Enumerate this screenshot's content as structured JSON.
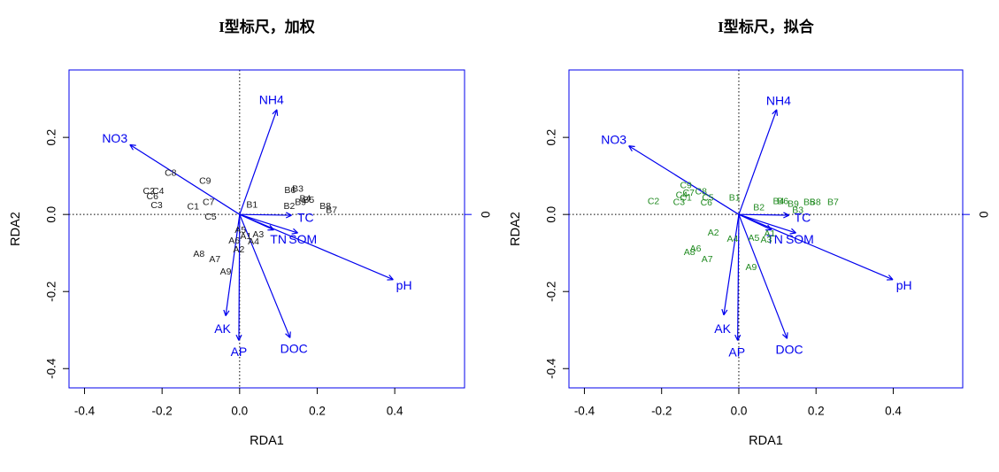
{
  "page": {
    "background": "#ffffff"
  },
  "colors": {
    "arrow_blue": "#0000EE",
    "box_blue": "#0000EE",
    "site_black": "#1a1a1a",
    "site_green": "#228B22",
    "axis_black": "#000000"
  },
  "chart_data": [
    {
      "type": "scatter",
      "subtype": "rda-biplot",
      "title": "I型标尺，加权",
      "xlabel": "RDA1",
      "ylabel": "RDA2",
      "xlim": [
        -0.44,
        0.58
      ],
      "ylim": [
        -0.45,
        0.375
      ],
      "grid": false,
      "xticks": [
        {
          "v": -0.4,
          "label": "-0.4"
        },
        {
          "v": -0.2,
          "label": "-0.2"
        },
        {
          "v": 0.0,
          "label": "0.0"
        },
        {
          "v": 0.2,
          "label": "0.2"
        },
        {
          "v": 0.4,
          "label": "0.4"
        }
      ],
      "yticks": [
        {
          "v": 0.2,
          "label": "0.2"
        },
        {
          "v": 0.0,
          "label": "0.0"
        },
        {
          "v": -0.2,
          "label": "-0.2"
        },
        {
          "v": -0.4,
          "label": "-0.4"
        }
      ],
      "right_axis_label": "0",
      "site_color": "#1a1a1a",
      "sites": [
        {
          "label": "A1",
          "x": 0.016,
          "y": -0.057
        },
        {
          "label": "A2",
          "x": -0.002,
          "y": -0.091
        },
        {
          "label": "A3",
          "x": 0.048,
          "y": -0.053
        },
        {
          "label": "A4",
          "x": 0.036,
          "y": -0.071
        },
        {
          "label": "A5",
          "x": 0.002,
          "y": -0.041
        },
        {
          "label": "A6",
          "x": -0.014,
          "y": -0.069
        },
        {
          "label": "A7",
          "x": -0.064,
          "y": -0.117
        },
        {
          "label": "A8",
          "x": -0.105,
          "y": -0.103
        },
        {
          "label": "A9",
          "x": -0.036,
          "y": -0.149
        },
        {
          "label": "B1",
          "x": 0.032,
          "y": 0.025
        },
        {
          "label": "B2",
          "x": 0.128,
          "y": 0.021
        },
        {
          "label": "B3",
          "x": 0.15,
          "y": 0.066
        },
        {
          "label": "B4",
          "x": 0.169,
          "y": 0.041
        },
        {
          "label": "B5",
          "x": 0.178,
          "y": 0.037
        },
        {
          "label": "B6",
          "x": 0.13,
          "y": 0.062
        },
        {
          "label": "B7",
          "x": 0.237,
          "y": 0.011
        },
        {
          "label": "B8",
          "x": 0.221,
          "y": 0.021
        },
        {
          "label": "B9",
          "x": 0.157,
          "y": 0.032
        },
        {
          "label": "C1",
          "x": -0.12,
          "y": 0.02
        },
        {
          "label": "C2",
          "x": -0.234,
          "y": 0.06
        },
        {
          "label": "C3",
          "x": -0.214,
          "y": 0.023
        },
        {
          "label": "C4",
          "x": -0.21,
          "y": 0.06
        },
        {
          "label": "C5",
          "x": -0.075,
          "y": -0.007
        },
        {
          "label": "C6",
          "x": -0.225,
          "y": 0.046
        },
        {
          "label": "C7",
          "x": -0.08,
          "y": 0.032
        },
        {
          "label": "C8",
          "x": -0.178,
          "y": 0.107
        },
        {
          "label": "C9",
          "x": -0.089,
          "y": 0.087
        }
      ],
      "arrows": [
        {
          "label": "NH4",
          "x": 0.096,
          "y": 0.272,
          "lx": 0.082,
          "ly": 0.298
        },
        {
          "label": "NO3",
          "x": -0.283,
          "y": 0.181,
          "lx": -0.322,
          "ly": 0.198
        },
        {
          "label": "TC",
          "x": 0.134,
          "y": -0.002,
          "lx": 0.17,
          "ly": -0.008
        },
        {
          "label": "TN",
          "x": 0.088,
          "y": -0.04,
          "lx": 0.1,
          "ly": -0.064
        },
        {
          "label": "SOM",
          "x": 0.15,
          "y": -0.048,
          "lx": 0.163,
          "ly": -0.064
        },
        {
          "label": "pH",
          "x": 0.396,
          "y": -0.169,
          "lx": 0.424,
          "ly": -0.184
        },
        {
          "label": "AK",
          "x": -0.036,
          "y": -0.263,
          "lx": -0.044,
          "ly": -0.296
        },
        {
          "label": "AP",
          "x": -0.002,
          "y": -0.327,
          "lx": -0.002,
          "ly": -0.356
        },
        {
          "label": "DOC",
          "x": 0.13,
          "y": -0.32,
          "lx": 0.14,
          "ly": -0.348
        }
      ]
    },
    {
      "type": "scatter",
      "subtype": "rda-biplot",
      "title": "I型标尺，拟合",
      "xlabel": "RDA1",
      "ylabel": "RDA2",
      "xlim": [
        -0.44,
        0.58
      ],
      "ylim": [
        -0.45,
        0.375
      ],
      "grid": false,
      "xticks": [
        {
          "v": -0.4,
          "label": "-0.4"
        },
        {
          "v": -0.2,
          "label": "-0.2"
        },
        {
          "v": 0.0,
          "label": "0.0"
        },
        {
          "v": 0.2,
          "label": "0.2"
        },
        {
          "v": 0.4,
          "label": "0.4"
        }
      ],
      "yticks": [
        {
          "v": 0.2,
          "label": "0.2"
        },
        {
          "v": 0.0,
          "label": "0.0"
        },
        {
          "v": -0.2,
          "label": "-0.2"
        },
        {
          "v": -0.4,
          "label": "-0.4"
        }
      ],
      "right_axis_label": "0",
      "site_color": "#228B22",
      "sites": [
        {
          "label": "A1",
          "x": 0.08,
          "y": -0.05
        },
        {
          "label": "A2",
          "x": -0.066,
          "y": -0.048
        },
        {
          "label": "A3",
          "x": 0.071,
          "y": -0.066
        },
        {
          "label": "A4",
          "x": -0.016,
          "y": -0.064
        },
        {
          "label": "A5",
          "x": 0.039,
          "y": -0.062
        },
        {
          "label": "A6",
          "x": -0.112,
          "y": -0.089
        },
        {
          "label": "A7",
          "x": -0.082,
          "y": -0.117
        },
        {
          "label": "A8",
          "x": -0.128,
          "y": -0.098
        },
        {
          "label": "A9",
          "x": 0.032,
          "y": -0.137
        },
        {
          "label": "B1",
          "x": -0.011,
          "y": 0.043
        },
        {
          "label": "B2",
          "x": 0.052,
          "y": 0.018
        },
        {
          "label": "B3",
          "x": 0.153,
          "y": 0.011
        },
        {
          "label": "B4",
          "x": 0.103,
          "y": 0.034
        },
        {
          "label": "B5",
          "x": 0.182,
          "y": 0.032
        },
        {
          "label": "B6",
          "x": 0.114,
          "y": 0.034
        },
        {
          "label": "B7",
          "x": 0.244,
          "y": 0.032
        },
        {
          "label": "B8",
          "x": 0.198,
          "y": 0.032
        },
        {
          "label": "B9",
          "x": 0.141,
          "y": 0.027
        },
        {
          "label": "C1",
          "x": -0.137,
          "y": 0.043
        },
        {
          "label": "C2",
          "x": -0.221,
          "y": 0.034
        },
        {
          "label": "C3",
          "x": -0.155,
          "y": 0.032
        },
        {
          "label": "C4",
          "x": -0.148,
          "y": 0.05
        },
        {
          "label": "C5",
          "x": -0.08,
          "y": 0.043
        },
        {
          "label": "C6",
          "x": -0.084,
          "y": 0.03
        },
        {
          "label": "C7",
          "x": -0.13,
          "y": 0.055
        },
        {
          "label": "C8",
          "x": -0.098,
          "y": 0.059
        },
        {
          "label": "C9",
          "x": -0.137,
          "y": 0.075
        }
      ],
      "arrows": [
        {
          "label": "NH4",
          "x": 0.098,
          "y": 0.272,
          "lx": 0.103,
          "ly": 0.296
        },
        {
          "label": "NO3",
          "x": -0.285,
          "y": 0.178,
          "lx": -0.324,
          "ly": 0.195
        },
        {
          "label": "TC",
          "x": 0.13,
          "y": -0.002,
          "lx": 0.165,
          "ly": -0.008
        },
        {
          "label": "TN",
          "x": 0.085,
          "y": -0.04,
          "lx": 0.093,
          "ly": -0.064
        },
        {
          "label": "SOM",
          "x": 0.148,
          "y": -0.048,
          "lx": 0.158,
          "ly": -0.064
        },
        {
          "label": "pH",
          "x": 0.399,
          "y": -0.169,
          "lx": 0.428,
          "ly": -0.184
        },
        {
          "label": "AK",
          "x": -0.039,
          "y": -0.261,
          "lx": -0.042,
          "ly": -0.296
        },
        {
          "label": "AP",
          "x": -0.003,
          "y": -0.327,
          "lx": -0.005,
          "ly": -0.357
        },
        {
          "label": "DOC",
          "x": 0.125,
          "y": -0.322,
          "lx": 0.131,
          "ly": -0.35
        }
      ]
    }
  ]
}
